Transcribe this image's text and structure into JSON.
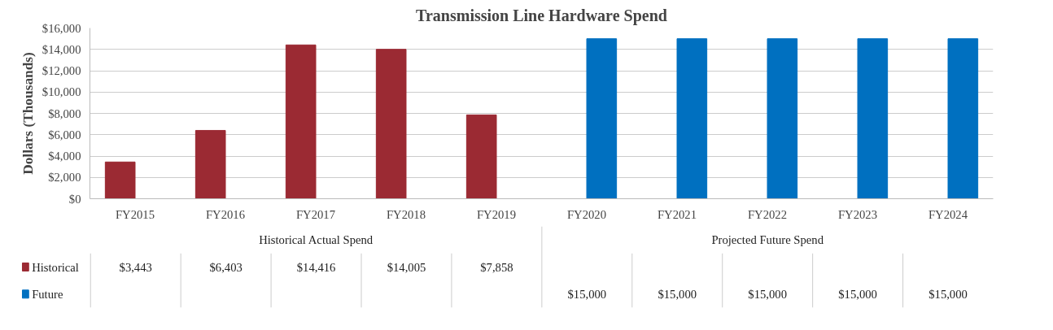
{
  "chart_data": {
    "type": "bar",
    "title": "Transmission Line Hardware Spend",
    "ylabel": "Dollars (Thousands)",
    "categories": [
      "FY2015",
      "FY2016",
      "FY2017",
      "FY2018",
      "FY2019",
      "FY2020",
      "FY2021",
      "FY2022",
      "FY2023",
      "FY2024"
    ],
    "series": [
      {
        "name": "Historical",
        "color": "#9b2a33",
        "values": [
          3443,
          6403,
          14416,
          14005,
          7858,
          null,
          null,
          null,
          null,
          null
        ],
        "value_labels": [
          "$3,443",
          "$6,403",
          "$14,416",
          "$14,005",
          "$7,858",
          null,
          null,
          null,
          null,
          null
        ]
      },
      {
        "name": "Future",
        "color": "#0070c0",
        "values": [
          null,
          null,
          null,
          null,
          null,
          15000,
          15000,
          15000,
          15000,
          15000
        ],
        "value_labels": [
          null,
          null,
          null,
          null,
          null,
          "$15,000",
          "$15,000",
          "$15,000",
          "$15,000",
          "$15,000"
        ]
      }
    ],
    "ylim": [
      0,
      16000
    ],
    "yticks": [
      {
        "value": 0,
        "label": "$0"
      },
      {
        "value": 2000,
        "label": "$2,000"
      },
      {
        "value": 4000,
        "label": "$4,000"
      },
      {
        "value": 6000,
        "label": "$6,000"
      },
      {
        "value": 8000,
        "label": "$8,000"
      },
      {
        "value": 10000,
        "label": "$10,000"
      },
      {
        "value": 12000,
        "label": "$12,000"
      },
      {
        "value": 14000,
        "label": "$14,000"
      },
      {
        "value": 16000,
        "label": "$16,000"
      }
    ],
    "annotations": [
      "Historical Actual Spend",
      "Projected Future Spend"
    ],
    "grid": "y",
    "legend": "bottom left"
  }
}
